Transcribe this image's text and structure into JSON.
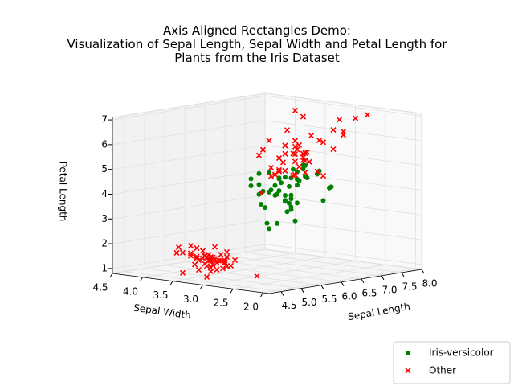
{
  "chart_data": {
    "type": "scatter3d",
    "title": "Axis Aligned Rectangles Demo:\nVisualization of Sepal Length, Sepal Width and Petal Length for\nPlants from the Iris Dataset",
    "xlabel": "Sepal Length",
    "ylabel": "Sepal Width",
    "zlabel": "Petal Length",
    "xlim": [
      4.2,
      8.0
    ],
    "ylim": [
      1.9,
      4.5
    ],
    "zlim": [
      0.8,
      7.1
    ],
    "xticks": [
      4.5,
      {
        "value": 5.0,
        "label": "5.0"
      },
      5.5,
      {
        "value": 6.0,
        "label": "6.0"
      },
      6.5,
      {
        "value": 7.0,
        "label": "7.0"
      },
      7.5,
      {
        "value": 8.0,
        "label": "8.0"
      }
    ],
    "yticks": [
      {
        "value": 2.0,
        "label": "2.0"
      },
      2.5,
      {
        "value": 3.0,
        "label": "3.0"
      },
      3.5,
      {
        "value": 4.0,
        "label": "4.0"
      },
      4.5
    ],
    "zticks": [
      1,
      2,
      3,
      4,
      5,
      6,
      7
    ],
    "grid": true,
    "legend_position": "lower right",
    "series": [
      {
        "name": "Iris-versicolor",
        "color": "#008000",
        "marker": "o",
        "x": [
          7.0,
          6.4,
          6.9,
          5.5,
          6.5,
          5.7,
          6.3,
          4.9,
          6.6,
          5.2,
          5.0,
          5.9,
          6.0,
          6.1,
          5.6,
          6.7,
          5.6,
          5.8,
          6.2,
          5.6,
          5.9,
          6.1,
          6.3,
          6.1,
          6.4,
          6.6,
          6.8,
          6.7,
          6.0,
          5.7,
          5.5,
          5.5,
          5.8,
          6.0,
          5.4,
          6.0,
          6.7,
          6.3,
          5.6,
          5.5,
          5.5,
          6.1,
          5.8,
          5.0,
          5.6,
          5.7,
          5.7,
          6.2,
          5.1,
          5.7
        ],
        "y": [
          3.2,
          3.2,
          3.1,
          2.3,
          2.8,
          2.8,
          3.3,
          2.4,
          2.9,
          2.7,
          2.0,
          3.0,
          2.2,
          2.9,
          2.9,
          3.1,
          3.0,
          2.7,
          2.2,
          2.5,
          3.2,
          2.8,
          2.5,
          2.8,
          2.9,
          3.0,
          2.8,
          3.0,
          2.9,
          2.6,
          2.4,
          2.4,
          2.7,
          2.7,
          3.0,
          3.4,
          3.1,
          2.3,
          3.0,
          2.5,
          2.6,
          3.0,
          2.6,
          2.3,
          2.7,
          3.0,
          2.9,
          2.9,
          2.5,
          2.8
        ],
        "z": [
          4.7,
          4.5,
          4.9,
          4.0,
          4.6,
          4.5,
          4.7,
          3.3,
          4.6,
          3.9,
          3.5,
          4.2,
          4.0,
          4.7,
          3.6,
          4.4,
          4.5,
          4.1,
          4.5,
          3.9,
          4.8,
          4.0,
          4.9,
          4.7,
          4.3,
          4.4,
          4.8,
          5.0,
          4.5,
          3.5,
          3.8,
          3.7,
          3.9,
          5.1,
          4.5,
          4.5,
          4.7,
          4.4,
          4.1,
          4.0,
          4.4,
          4.6,
          4.0,
          3.3,
          4.2,
          4.2,
          4.2,
          4.3,
          3.0,
          4.1
        ]
      },
      {
        "name": "Other",
        "color": "#ff0000",
        "marker": "x",
        "x": [
          5.1,
          4.9,
          4.7,
          4.6,
          5.0,
          5.4,
          4.6,
          5.0,
          4.4,
          4.9,
          5.4,
          4.8,
          4.8,
          4.3,
          5.8,
          5.7,
          5.4,
          5.1,
          5.7,
          5.1,
          5.4,
          5.1,
          4.6,
          5.1,
          4.8,
          5.0,
          5.0,
          5.2,
          5.2,
          4.7,
          4.8,
          5.4,
          5.2,
          5.5,
          4.9,
          5.0,
          5.5,
          4.9,
          4.4,
          5.1,
          5.0,
          4.5,
          4.4,
          5.0,
          5.1,
          4.8,
          5.1,
          4.6,
          5.3,
          5.0,
          6.3,
          5.8,
          7.1,
          6.3,
          6.5,
          7.6,
          4.9,
          7.3,
          6.7,
          7.2,
          6.5,
          6.4,
          6.8,
          5.7,
          5.8,
          6.4,
          6.5,
          7.7,
          7.7,
          6.0,
          6.9,
          5.6,
          7.7,
          6.3,
          6.7,
          7.2,
          6.2,
          6.1,
          6.4,
          7.2,
          7.4,
          7.9,
          6.4,
          6.3,
          6.1,
          7.7,
          6.3,
          6.4,
          6.0,
          6.9,
          6.7,
          6.9,
          5.8,
          6.8,
          6.7,
          6.7,
          6.3,
          6.5,
          6.2,
          5.9
        ],
        "y": [
          3.5,
          3.0,
          3.2,
          3.1,
          3.6,
          3.9,
          3.4,
          3.4,
          2.9,
          3.1,
          3.7,
          3.4,
          3.0,
          3.0,
          4.0,
          4.4,
          3.9,
          3.5,
          3.8,
          3.8,
          3.4,
          3.7,
          3.6,
          3.3,
          3.4,
          3.0,
          3.4,
          3.5,
          3.4,
          3.2,
          3.1,
          3.4,
          4.1,
          4.2,
          3.1,
          3.2,
          3.5,
          3.1,
          3.0,
          3.4,
          3.5,
          2.3,
          3.2,
          3.5,
          3.8,
          3.0,
          3.8,
          3.2,
          3.7,
          3.3,
          3.3,
          2.7,
          3.0,
          2.9,
          3.0,
          3.0,
          2.5,
          2.9,
          2.5,
          3.6,
          3.2,
          2.7,
          3.0,
          2.5,
          2.8,
          3.2,
          3.0,
          3.8,
          2.6,
          2.2,
          3.2,
          2.8,
          2.8,
          2.7,
          3.3,
          3.2,
          2.8,
          3.0,
          2.8,
          3.0,
          2.8,
          3.8,
          2.8,
          2.8,
          2.6,
          3.0,
          3.4,
          3.1,
          3.0,
          3.1,
          3.1,
          3.1,
          2.7,
          3.2,
          3.3,
          3.0,
          2.5,
          3.0,
          3.4,
          3.0
        ],
        "z": [
          1.4,
          1.4,
          1.3,
          1.5,
          1.4,
          1.7,
          1.4,
          1.5,
          1.4,
          1.5,
          1.5,
          1.6,
          1.4,
          1.1,
          1.2,
          1.5,
          1.3,
          1.4,
          1.7,
          1.5,
          1.7,
          1.5,
          1.0,
          1.7,
          1.9,
          1.6,
          1.6,
          1.5,
          1.4,
          1.6,
          1.6,
          1.5,
          1.5,
          1.4,
          1.5,
          1.2,
          1.3,
          1.5,
          1.3,
          1.5,
          1.3,
          1.3,
          1.3,
          1.6,
          1.9,
          1.4,
          1.6,
          1.4,
          1.5,
          1.4,
          6.0,
          5.1,
          5.9,
          5.6,
          5.8,
          6.6,
          4.5,
          6.3,
          5.8,
          6.1,
          5.1,
          5.3,
          5.5,
          5.0,
          5.1,
          5.3,
          5.5,
          6.7,
          6.9,
          5.0,
          5.7,
          4.9,
          6.7,
          4.9,
          5.7,
          6.0,
          4.8,
          4.9,
          5.6,
          5.8,
          6.1,
          6.4,
          5.6,
          5.1,
          5.6,
          6.1,
          5.6,
          5.5,
          4.8,
          5.4,
          5.6,
          5.1,
          5.1,
          5.9,
          5.7,
          5.2,
          5.0,
          5.2,
          5.4,
          5.1
        ]
      }
    ]
  }
}
